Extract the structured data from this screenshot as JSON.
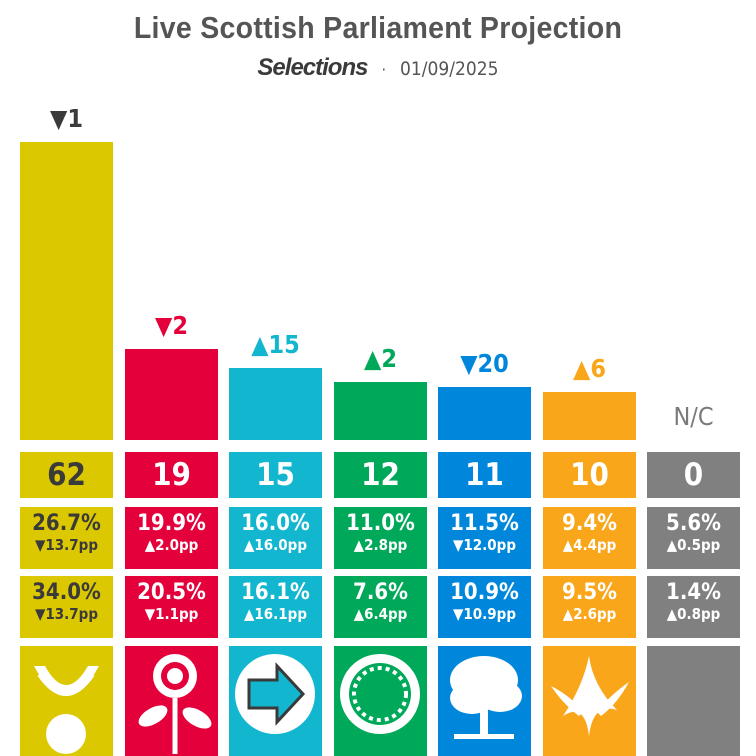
{
  "header": {
    "title": "Live Scottish Parliament Projection",
    "brand": "Selections",
    "separator": "·",
    "date": "01/09/2025"
  },
  "chart_data": {
    "type": "bar",
    "title": "Live Scottish Parliament Projection",
    "ylim": [
      0,
      62
    ],
    "categories": [
      "SNP",
      "Labour",
      "Reform UK",
      "Scottish Greens",
      "Conservative",
      "Liberal Democrats",
      "N/C"
    ],
    "values": [
      62,
      19,
      15,
      12,
      11,
      10,
      0
    ],
    "parties": [
      {
        "name": "SNP",
        "seats": "62",
        "seat_change": "▼1",
        "constituency_share": "26.7%",
        "constituency_change": "▼13.7pp",
        "list_share": "34.0%",
        "list_change": "▼13.7pp",
        "color": "#DCC800",
        "text_color": "#3a3a3a",
        "change_color": "#3a3a3a",
        "logo": "snp-logo-icon"
      },
      {
        "name": "Labour",
        "seats": "19",
        "seat_change": "▼2",
        "constituency_share": "19.9%",
        "constituency_change": "▲2.0pp",
        "list_share": "20.5%",
        "list_change": "▼1.1pp",
        "color": "#E4003B",
        "text_color": "#ffffff",
        "change_color": "#E4003B",
        "logo": "labour-rose-icon"
      },
      {
        "name": "Reform UK",
        "seats": "15",
        "seat_change": "▲15",
        "constituency_share": "16.0%",
        "constituency_change": "▲16.0pp",
        "list_share": "16.1%",
        "list_change": "▲16.1pp",
        "color": "#12B6CF",
        "text_color": "#ffffff",
        "change_color": "#12B6CF",
        "logo": "reform-arrow-icon"
      },
      {
        "name": "Scottish Greens",
        "seats": "12",
        "seat_change": "▲2",
        "constituency_share": "11.0%",
        "constituency_change": "▲2.8pp",
        "list_share": "7.6%",
        "list_change": "▲6.4pp",
        "color": "#00A85A",
        "text_color": "#ffffff",
        "change_color": "#00A85A",
        "logo": "green-sun-icon"
      },
      {
        "name": "Conservative",
        "seats": "11",
        "seat_change": "▼20",
        "constituency_share": "11.5%",
        "constituency_change": "▼12.0pp",
        "list_share": "10.9%",
        "list_change": "▼10.9pp",
        "color": "#0087DC",
        "text_color": "#ffffff",
        "change_color": "#0087DC",
        "logo": "conservative-tree-icon"
      },
      {
        "name": "Liberal Democrats",
        "seats": "10",
        "seat_change": "▲6",
        "constituency_share": "9.4%",
        "constituency_change": "▲4.4pp",
        "list_share": "9.5%",
        "list_change": "▲2.6pp",
        "color": "#FAA61A",
        "text_color": "#ffffff",
        "change_color": "#FAA61A",
        "logo": "libdem-bird-icon"
      },
      {
        "name": "N/C",
        "seats": "0",
        "seat_change": "N/C",
        "constituency_share": "5.6%",
        "constituency_change": "▲0.5pp",
        "list_share": "1.4%",
        "list_change": "▲0.8pp",
        "color": "#808080",
        "text_color": "#ffffff",
        "change_color": "#808080",
        "logo": ""
      }
    ]
  }
}
